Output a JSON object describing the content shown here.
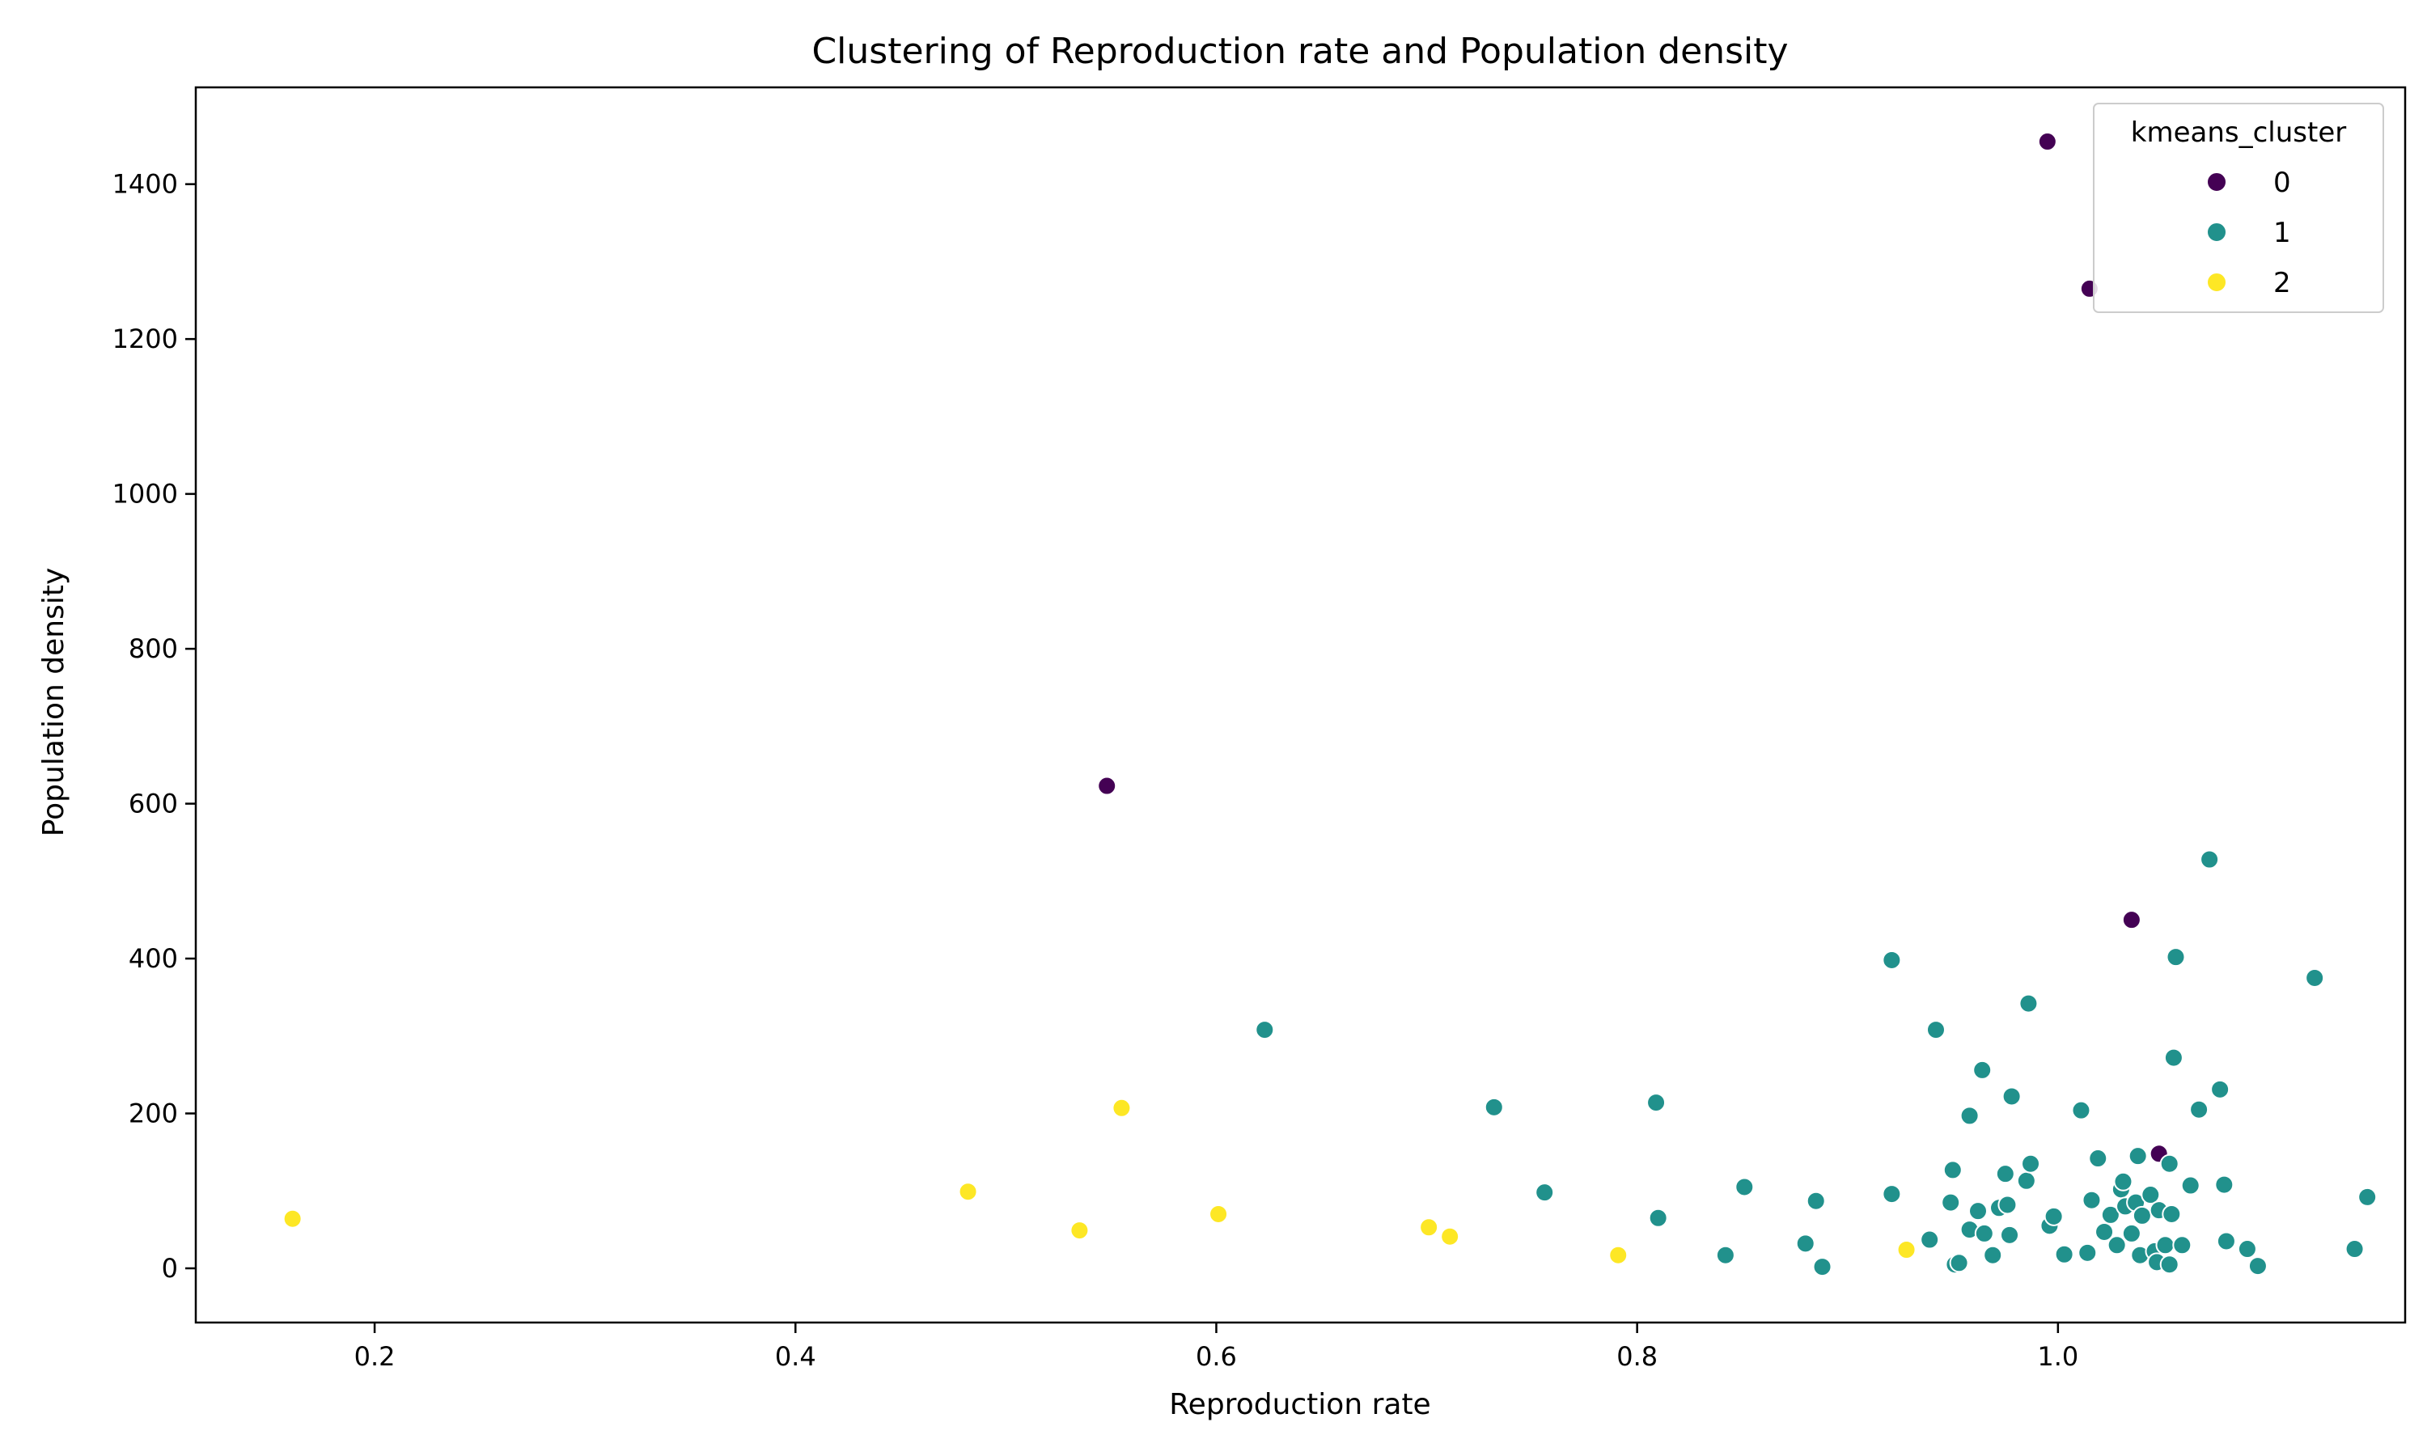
{
  "chart_data": {
    "type": "scatter",
    "title": "Clustering of Reproduction rate and Population density",
    "xlabel": "Reproduction rate",
    "ylabel": "Population density",
    "xlim": [
      0.115,
      1.165
    ],
    "ylim": [
      -70,
      1525
    ],
    "xticks": [
      0.2,
      0.4,
      0.6,
      0.8,
      1.0
    ],
    "yticks": [
      0,
      200,
      400,
      600,
      800,
      1000,
      1200,
      1400
    ],
    "tick_labels_x": [
      "0.2",
      "0.4",
      "0.6",
      "0.8",
      "1.0"
    ],
    "tick_labels_y": [
      "0",
      "200",
      "400",
      "600",
      "800",
      "1000",
      "1200",
      "1400"
    ],
    "grid": false,
    "legend": {
      "title": "kmeans_cluster",
      "placement": "top-right"
    },
    "colors": {
      "0": "#440154",
      "1": "#21918c",
      "2": "#fde725"
    },
    "series": [
      {
        "name": "0",
        "color": "#440154",
        "points": [
          [
            0.995,
            1455
          ],
          [
            1.015,
            1265
          ],
          [
            0.548,
            623
          ],
          [
            1.035,
            450
          ],
          [
            1.048,
            148
          ]
        ]
      },
      {
        "name": "1",
        "color": "#21918c",
        "points": [
          [
            0.623,
            308
          ],
          [
            0.732,
            208
          ],
          [
            0.756,
            98
          ],
          [
            0.809,
            214
          ],
          [
            0.81,
            65
          ],
          [
            0.851,
            105
          ],
          [
            0.842,
            17
          ],
          [
            0.88,
            32
          ],
          [
            0.885,
            87
          ],
          [
            0.888,
            2
          ],
          [
            0.921,
            398
          ],
          [
            0.921,
            96
          ],
          [
            0.942,
            308
          ],
          [
            0.939,
            37
          ],
          [
            0.949,
            85
          ],
          [
            0.95,
            127
          ],
          [
            0.951,
            5
          ],
          [
            0.953,
            7
          ],
          [
            0.958,
            197
          ],
          [
            0.958,
            50
          ],
          [
            0.962,
            74
          ],
          [
            0.964,
            256
          ],
          [
            0.965,
            45
          ],
          [
            0.969,
            17
          ],
          [
            0.972,
            78
          ],
          [
            0.975,
            122
          ],
          [
            0.976,
            82
          ],
          [
            0.977,
            43
          ],
          [
            0.978,
            222
          ],
          [
            0.985,
            113
          ],
          [
            0.986,
            342
          ],
          [
            0.987,
            135
          ],
          [
            0.996,
            55
          ],
          [
            0.998,
            67
          ],
          [
            1.003,
            18
          ],
          [
            1.011,
            204
          ],
          [
            1.014,
            20
          ],
          [
            1.016,
            88
          ],
          [
            1.019,
            142
          ],
          [
            1.022,
            47
          ],
          [
            1.025,
            69
          ],
          [
            1.028,
            30
          ],
          [
            1.03,
            102
          ],
          [
            1.031,
            112
          ],
          [
            1.032,
            80
          ],
          [
            1.035,
            45
          ],
          [
            1.037,
            85
          ],
          [
            1.038,
            145
          ],
          [
            1.039,
            17
          ],
          [
            1.04,
            68
          ],
          [
            1.044,
            95
          ],
          [
            1.046,
            22
          ],
          [
            1.047,
            8
          ],
          [
            1.048,
            75
          ],
          [
            1.051,
            30
          ],
          [
            1.053,
            5
          ],
          [
            1.053,
            135
          ],
          [
            1.054,
            70
          ],
          [
            1.055,
            272
          ],
          [
            1.056,
            402
          ],
          [
            1.059,
            30
          ],
          [
            1.063,
            107
          ],
          [
            1.067,
            205
          ],
          [
            1.072,
            528
          ],
          [
            1.077,
            231
          ],
          [
            1.079,
            108
          ],
          [
            1.08,
            35
          ],
          [
            1.09,
            25
          ],
          [
            1.095,
            3
          ],
          [
            1.122,
            375
          ],
          [
            1.141,
            25
          ],
          [
            1.147,
            92
          ]
        ]
      },
      {
        "name": "2",
        "color": "#fde725",
        "points": [
          [
            0.161,
            64
          ],
          [
            0.482,
            99
          ],
          [
            0.535,
            49
          ],
          [
            0.555,
            207
          ],
          [
            0.601,
            70
          ],
          [
            0.701,
            53
          ],
          [
            0.711,
            41
          ],
          [
            0.791,
            17
          ],
          [
            0.928,
            24
          ]
        ]
      }
    ]
  }
}
